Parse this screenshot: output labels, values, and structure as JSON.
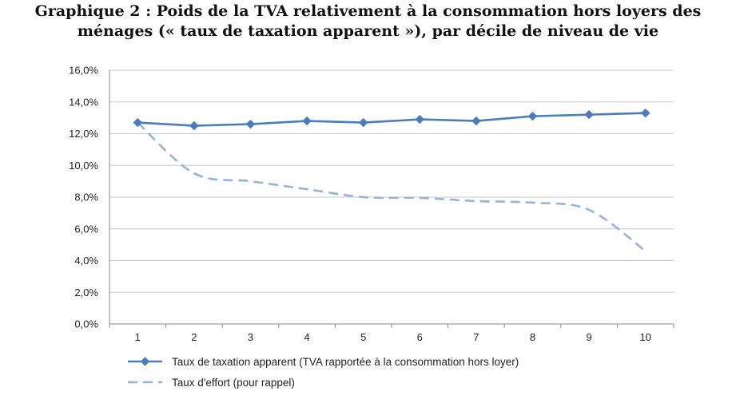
{
  "title_line1": "Graphique 2 : Poids de la TVA relativement à la consommation hors loyers des",
  "title_line2": "ménages (« taux de taxation apparent »), par décile de niveau de vie",
  "chart_data": {
    "type": "line",
    "title": "Graphique 2 : Poids de la TVA relativement à la consommation hors loyers des ménages (« taux de taxation apparent »), par décile de niveau de vie",
    "xlabel": "",
    "ylabel": "",
    "x": [
      1,
      2,
      3,
      4,
      5,
      6,
      7,
      8,
      9,
      10
    ],
    "ylim": [
      0,
      16
    ],
    "yticks": [
      "0,0%",
      "2,0%",
      "4,0%",
      "6,0%",
      "8,0%",
      "10,0%",
      "12,0%",
      "14,0%",
      "16,0%"
    ],
    "grid": true,
    "legend_position": "bottom",
    "series": [
      {
        "name": "Taux de taxation apparent (TVA rapportée à la consommation hors loyer)",
        "color": "#4a7ebb",
        "style": "solid-diamond",
        "values": [
          12.7,
          12.5,
          12.6,
          12.8,
          12.7,
          12.9,
          12.8,
          13.1,
          13.2,
          13.3
        ]
      },
      {
        "name": "Taux d'effort (pour rappel)",
        "color": "#95b3d7",
        "style": "dashed",
        "values": [
          12.7,
          9.5,
          9.0,
          8.5,
          8.0,
          7.95,
          7.75,
          7.65,
          7.2,
          4.6
        ]
      }
    ]
  }
}
